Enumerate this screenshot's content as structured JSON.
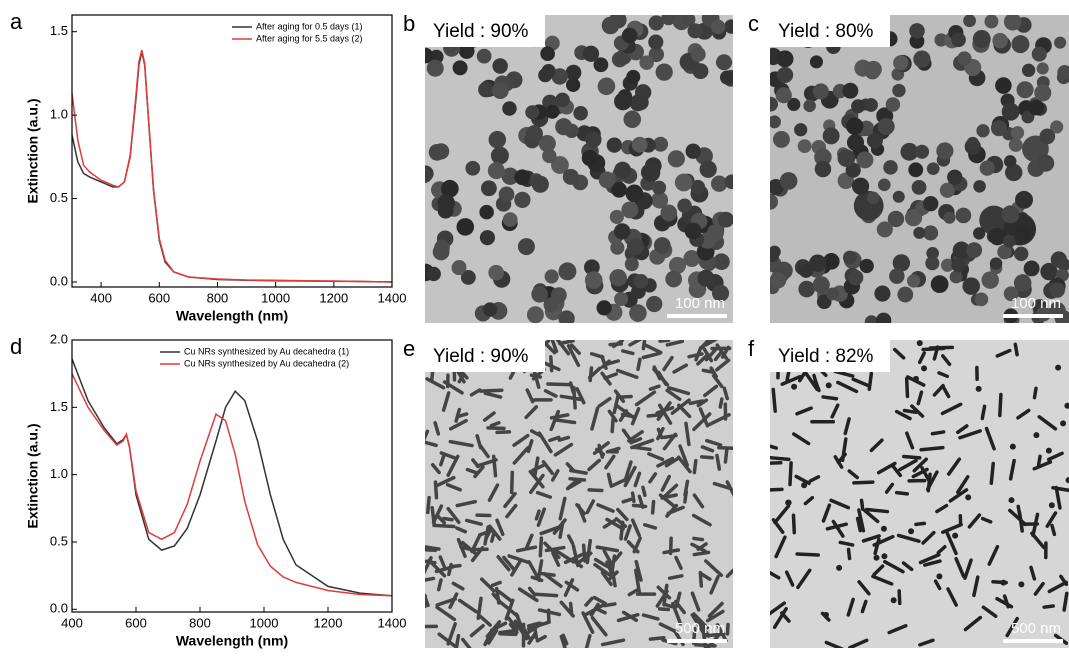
{
  "chart_data": [
    {
      "type": "line",
      "panel_label": "a",
      "xlabel": "Wavelength (nm)",
      "ylabel": "Extinction (a.u.)",
      "x": [
        300,
        320,
        340,
        360,
        400,
        440,
        460,
        480,
        500,
        520,
        530,
        540,
        550,
        560,
        580,
        600,
        620,
        650,
        700,
        800,
        900,
        1000,
        1100,
        1200,
        1300,
        1400
      ],
      "series": [
        {
          "name": "After aging for 0.5 days (1)",
          "color": "#333333",
          "values": [
            0.88,
            0.72,
            0.65,
            0.63,
            0.6,
            0.57,
            0.57,
            0.6,
            0.75,
            1.1,
            1.3,
            1.38,
            1.3,
            1.05,
            0.55,
            0.25,
            0.12,
            0.06,
            0.03,
            0.015,
            0.01,
            0.008,
            0.006,
            0.005,
            0.003,
            0.0
          ]
        },
        {
          "name": "After aging for 5.5 days (2)",
          "color": "#e03c3c",
          "values": [
            1.13,
            0.85,
            0.7,
            0.66,
            0.61,
            0.58,
            0.57,
            0.6,
            0.76,
            1.12,
            1.32,
            1.39,
            1.31,
            1.06,
            0.56,
            0.26,
            0.13,
            0.06,
            0.03,
            0.018,
            0.012,
            0.01,
            0.008,
            0.006,
            0.003,
            0.0
          ]
        }
      ],
      "xlim": [
        300,
        1400
      ],
      "xticks": [
        400,
        600,
        800,
        1000,
        1200,
        1400
      ],
      "ylim": [
        -0.03,
        1.6
      ],
      "yticks": [
        {
          "value": 0,
          "label": "0.0"
        },
        0.5,
        {
          "value": 1,
          "label": "1.0"
        },
        1.5
      ]
    },
    {
      "type": "line",
      "panel_label": "d",
      "xlabel": "Wavelength (nm)",
      "ylabel": "Extinction (a.u.)",
      "x": [
        400,
        450,
        500,
        540,
        560,
        570,
        580,
        600,
        640,
        680,
        720,
        760,
        800,
        850,
        880,
        910,
        940,
        980,
        1020,
        1060,
        1100,
        1200,
        1300,
        1400
      ],
      "series": [
        {
          "name": "Cu NRs synthesized by Au decahedra (1)",
          "color": "#333333",
          "values": [
            1.86,
            1.55,
            1.35,
            1.23,
            1.26,
            1.3,
            1.2,
            0.85,
            0.52,
            0.44,
            0.47,
            0.6,
            0.85,
            1.25,
            1.5,
            1.62,
            1.55,
            1.25,
            0.85,
            0.52,
            0.33,
            0.17,
            0.12,
            0.1
          ]
        },
        {
          "name": "Cu NRs synthesized by Au decahedra (2)",
          "color": "#e03c3c",
          "values": [
            1.75,
            1.5,
            1.33,
            1.22,
            1.25,
            1.3,
            1.2,
            0.88,
            0.57,
            0.52,
            0.57,
            0.78,
            1.1,
            1.45,
            1.4,
            1.15,
            0.8,
            0.48,
            0.32,
            0.24,
            0.2,
            0.14,
            0.11,
            0.1
          ]
        }
      ],
      "xlim": [
        400,
        1400
      ],
      "xticks": [
        400,
        600,
        800,
        1000,
        1200,
        1400
      ],
      "ylim": [
        -0.02,
        2.0
      ],
      "yticks": [
        {
          "value": 0,
          "label": "0.0"
        },
        0.5,
        {
          "value": 1,
          "label": "1.0"
        },
        1.5,
        {
          "value": 2,
          "label": "2.0"
        }
      ]
    }
  ],
  "images": [
    {
      "panel_label": "b",
      "yield": "Yield : 90%",
      "scale_bar": "100 nm"
    },
    {
      "panel_label": "c",
      "yield": "Yield : 80%",
      "scale_bar": "100 nm"
    },
    {
      "panel_label": "e",
      "yield": "Yield : 90%",
      "scale_bar": "500 nm"
    },
    {
      "panel_label": "f",
      "yield": "Yield : 82%",
      "scale_bar": "500 nm"
    }
  ]
}
